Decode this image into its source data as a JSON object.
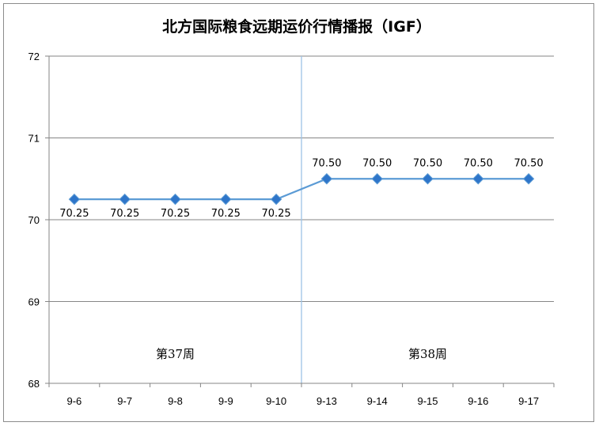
{
  "chart_data": {
    "type": "line",
    "title": "北方国际粮食远期运价行情播报（IGF）",
    "categories": [
      "9-6",
      "9-7",
      "9-8",
      "9-9",
      "9-10",
      "9-13",
      "9-14",
      "9-15",
      "9-16",
      "9-17"
    ],
    "series": [
      {
        "values": [
          70.25,
          70.25,
          70.25,
          70.25,
          70.25,
          70.5,
          70.5,
          70.5,
          70.5,
          70.5
        ],
        "labels": [
          "70.25",
          "70.25",
          "70.25",
          "70.25",
          "70.25",
          "70.50",
          "70.50",
          "70.50",
          "70.50",
          "70.50"
        ],
        "color": "#5b9bd5",
        "marker": "diamond",
        "marker_color": "#2e75c9"
      }
    ],
    "ylim": [
      68,
      72
    ],
    "yticks": [
      "68",
      "69",
      "70",
      "71",
      "72"
    ],
    "grid": true,
    "legend": "none",
    "week_divider_after_category": "9-10",
    "week_labels": [
      {
        "text": "第37周",
        "span": [
          "9-6",
          "9-10"
        ]
      },
      {
        "text": "第38周",
        "span": [
          "9-13",
          "9-17"
        ]
      }
    ]
  }
}
